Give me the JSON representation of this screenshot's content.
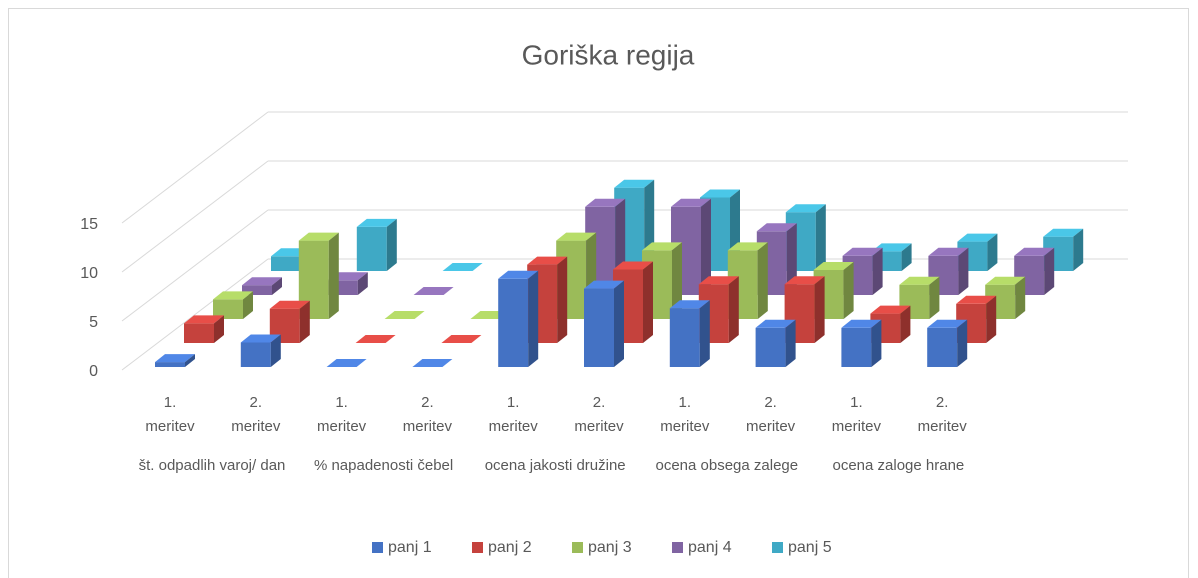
{
  "chart_data": {
    "type": "bar3d",
    "title": "Goriška regija",
    "categories": [
      "1. meritev",
      "2. meritev",
      "1. meritev",
      "2. meritev",
      "1. meritev",
      "2. meritev",
      "1. meritev",
      "2. meritev",
      "1. meritev",
      "2. meritev"
    ],
    "groups": [
      "št. odpadlih varoj/ dan",
      "% napadenosti čebel",
      "ocena jakosti družine",
      "ocena obsega zalege",
      "ocena zaloge hrane"
    ],
    "series": [
      {
        "name": "panj 1",
        "color": "#4472c4",
        "values": [
          0.5,
          2.5,
          0,
          0,
          9,
          8,
          6,
          4,
          4,
          4
        ]
      },
      {
        "name": "panj 2",
        "color": "#c5423d",
        "values": [
          2,
          3.5,
          0,
          0,
          8,
          7.5,
          6,
          6,
          3,
          4
        ]
      },
      {
        "name": "panj 3",
        "color": "#9bbb59",
        "values": [
          2,
          8,
          0,
          0,
          8,
          7,
          7,
          5,
          3.5,
          3.5
        ]
      },
      {
        "name": "panj 4",
        "color": "#8064a2",
        "values": [
          1,
          1.5,
          0,
          0,
          9,
          9,
          6.5,
          4,
          4,
          4
        ]
      },
      {
        "name": "panj 5",
        "color": "#3fa9c5",
        "values": [
          1.5,
          4.5,
          0,
          0,
          8.5,
          7.5,
          6,
          2,
          3,
          3.5
        ]
      }
    ],
    "ylim": [
      0,
      15
    ],
    "yticks": [
      0,
      5,
      10,
      15
    ],
    "grid": true,
    "legend": "bottom"
  }
}
